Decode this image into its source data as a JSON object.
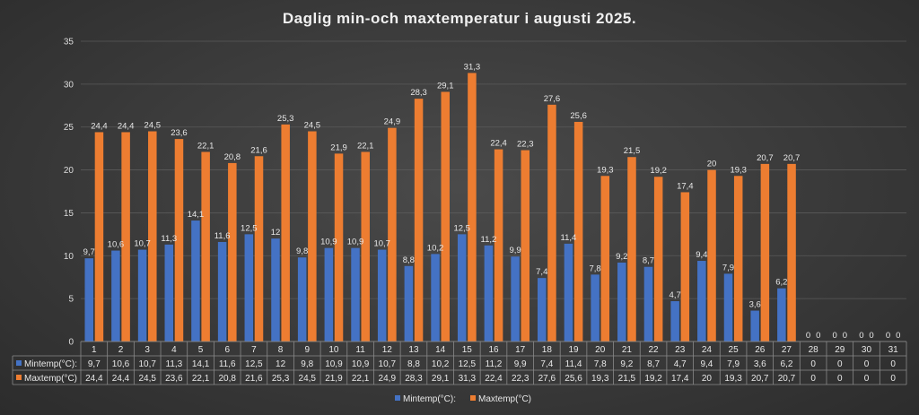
{
  "chart_data": {
    "type": "bar",
    "title": "Daglig min-och maxtemperatur i augusti 2025.",
    "xlabel": "",
    "ylabel": "",
    "ylim": [
      0,
      35
    ],
    "yticks": [
      0,
      5,
      10,
      15,
      20,
      25,
      30,
      35
    ],
    "grid": true,
    "legend_position": "bottom",
    "data_table": true,
    "categories": [
      "1",
      "2",
      "3",
      "4",
      "5",
      "6",
      "7",
      "8",
      "9",
      "10",
      "11",
      "12",
      "13",
      "14",
      "15",
      "16",
      "17",
      "18",
      "19",
      "20",
      "21",
      "22",
      "23",
      "24",
      "25",
      "26",
      "27",
      "28",
      "29",
      "30",
      "31"
    ],
    "series": [
      {
        "name": "Mintemp(°C):",
        "color": "#4472c4",
        "values": [
          9.7,
          10.6,
          10.7,
          11.3,
          14.1,
          11.6,
          12.5,
          12,
          9.8,
          10.9,
          10.9,
          10.7,
          8.8,
          10.2,
          12.5,
          11.2,
          9.9,
          7.4,
          11.4,
          7.8,
          9.2,
          8.7,
          4.7,
          9.4,
          7.9,
          3.6,
          6.2,
          0,
          0,
          0,
          0
        ],
        "labels": [
          "9,7",
          "10,6",
          "10,7",
          "11,3",
          "14,1",
          "11,6",
          "12,5",
          "12",
          "9,8",
          "10,9",
          "10,9",
          "10,7",
          "8,8",
          "10,2",
          "12,5",
          "11,2",
          "9,9",
          "7,4",
          "11,4",
          "7,8",
          "9,2",
          "8,7",
          "4,7",
          "9,4",
          "7,9",
          "3,6",
          "6,2",
          "0",
          "0",
          "0",
          "0"
        ]
      },
      {
        "name": "Maxtemp(°C)",
        "color": "#ed7d31",
        "values": [
          24.4,
          24.4,
          24.5,
          23.6,
          22.1,
          20.8,
          21.6,
          25.3,
          24.5,
          21.9,
          22.1,
          24.9,
          28.3,
          29.1,
          31.3,
          22.4,
          22.3,
          27.6,
          25.6,
          19.3,
          21.5,
          19.2,
          17.4,
          20,
          19.3,
          20.7,
          20.7,
          0,
          0,
          0,
          0
        ],
        "labels": [
          "24,4",
          "24,4",
          "24,5",
          "23,6",
          "22,1",
          "20,8",
          "21,6",
          "25,3",
          "24,5",
          "21,9",
          "22,1",
          "24,9",
          "28,3",
          "29,1",
          "31,3",
          "22,4",
          "22,3",
          "27,6",
          "25,6",
          "19,3",
          "21,5",
          "19,2",
          "17,4",
          "20",
          "19,3",
          "20,7",
          "20,7",
          "0",
          "0",
          "0",
          "0"
        ]
      }
    ]
  }
}
